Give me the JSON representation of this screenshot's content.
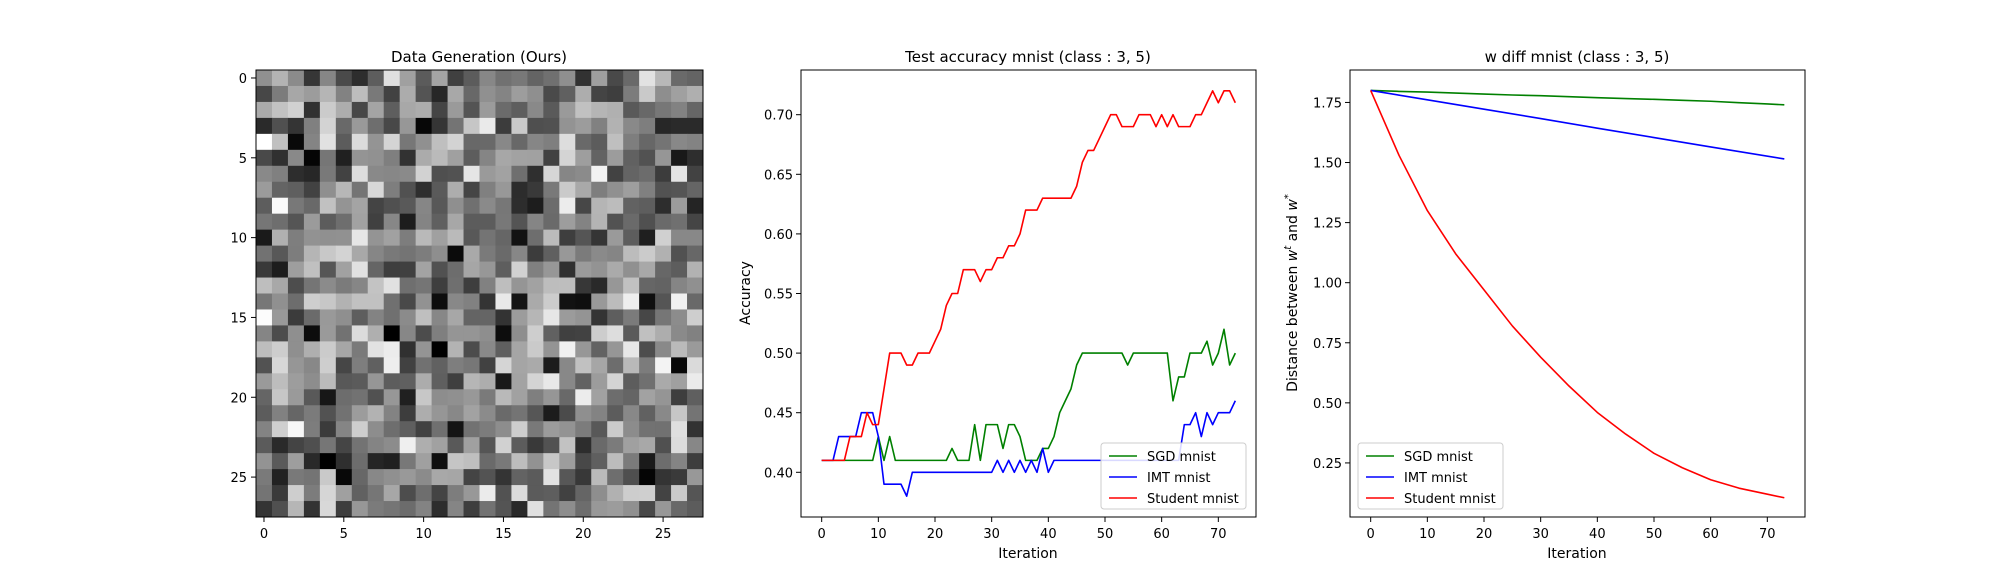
{
  "colors": {
    "green": "#008000",
    "blue": "#0000ff",
    "red": "#ff0000",
    "background": "#ffffff"
  },
  "chart_data": [
    {
      "type": "heatmap",
      "title": "Data Generation (Ours)",
      "xlabel": "",
      "ylabel": "",
      "rows": 28,
      "cols": 28,
      "colormap": "gray",
      "xticks": [
        0,
        5,
        10,
        15,
        20,
        25
      ],
      "yticks": [
        0,
        5,
        10,
        15,
        20,
        25
      ],
      "pixel_values_note_free": true,
      "seed": 1337,
      "notable_pixels": [
        {
          "row": 5,
          "col": 3,
          "value": 0.02
        },
        {
          "row": 16,
          "col": 3,
          "value": 0.05
        },
        {
          "row": 22,
          "col": 2,
          "value": 0.97
        },
        {
          "row": 6,
          "col": 21,
          "value": 0.95
        },
        {
          "row": 19,
          "col": 27,
          "value": 0.92
        },
        {
          "row": 22,
          "col": 12,
          "value": 0.08
        },
        {
          "row": 10,
          "col": 16,
          "value": 0.07
        },
        {
          "row": 14,
          "col": 20,
          "value": 0.06
        },
        {
          "row": 10,
          "col": 0,
          "value": 0.1
        }
      ]
    },
    {
      "type": "line",
      "title": "Test accuracy mnist (class : 3, 5)",
      "xlabel": "Iteration",
      "ylabel": "Accuracy",
      "xlim": [
        -3.65,
        76.65
      ],
      "ylim": [
        0.3625,
        0.7375
      ],
      "xticks": [
        0,
        10,
        20,
        30,
        40,
        50,
        60,
        70
      ],
      "yticks": [
        0.4,
        0.45,
        0.5,
        0.55,
        0.6,
        0.65,
        0.7
      ],
      "yticks_labels": [
        "0.40",
        "0.45",
        "0.50",
        "0.55",
        "0.60",
        "0.65",
        "0.70"
      ],
      "legend_position": "lower-right",
      "series": [
        {
          "name": "SGD mnist",
          "color": "#008000",
          "x": [
            0,
            1,
            2,
            3,
            4,
            5,
            6,
            7,
            8,
            9,
            10,
            11,
            12,
            13,
            14,
            15,
            16,
            17,
            18,
            19,
            20,
            21,
            22,
            23,
            24,
            25,
            26,
            27,
            28,
            29,
            30,
            31,
            32,
            33,
            34,
            35,
            36,
            37,
            38,
            39,
            40,
            41,
            42,
            43,
            44,
            45,
            46,
            47,
            48,
            49,
            50,
            51,
            52,
            53,
            54,
            55,
            56,
            57,
            58,
            59,
            60,
            61,
            62,
            63,
            64,
            65,
            66,
            67,
            68,
            69,
            70,
            71,
            72,
            73
          ],
          "values": [
            0.41,
            0.41,
            0.41,
            0.41,
            0.41,
            0.41,
            0.41,
            0.41,
            0.41,
            0.41,
            0.43,
            0.41,
            0.43,
            0.41,
            0.41,
            0.41,
            0.41,
            0.41,
            0.41,
            0.41,
            0.41,
            0.41,
            0.41,
            0.42,
            0.41,
            0.41,
            0.41,
            0.44,
            0.41,
            0.44,
            0.44,
            0.44,
            0.42,
            0.44,
            0.44,
            0.43,
            0.41,
            0.41,
            0.41,
            0.42,
            0.42,
            0.43,
            0.45,
            0.46,
            0.47,
            0.49,
            0.5,
            0.5,
            0.5,
            0.5,
            0.5,
            0.5,
            0.5,
            0.5,
            0.49,
            0.5,
            0.5,
            0.5,
            0.5,
            0.5,
            0.5,
            0.5,
            0.46,
            0.48,
            0.48,
            0.5,
            0.5,
            0.5,
            0.51,
            0.49,
            0.5,
            0.52,
            0.49,
            0.5
          ]
        },
        {
          "name": "IMT mnist",
          "color": "#0000ff",
          "x": [
            0,
            1,
            2,
            3,
            4,
            5,
            6,
            7,
            8,
            9,
            10,
            11,
            12,
            13,
            14,
            15,
            16,
            17,
            18,
            19,
            20,
            21,
            22,
            23,
            24,
            25,
            26,
            27,
            28,
            29,
            30,
            31,
            32,
            33,
            34,
            35,
            36,
            37,
            38,
            39,
            40,
            41,
            42,
            43,
            44,
            45,
            46,
            47,
            48,
            49,
            50,
            51,
            52,
            53,
            54,
            55,
            56,
            57,
            58,
            59,
            60,
            61,
            62,
            63,
            64,
            65,
            66,
            67,
            68,
            69,
            70,
            71,
            72,
            73
          ],
          "values": [
            0.41,
            0.41,
            0.41,
            0.43,
            0.43,
            0.43,
            0.43,
            0.45,
            0.45,
            0.45,
            0.43,
            0.39,
            0.39,
            0.39,
            0.39,
            0.38,
            0.4,
            0.4,
            0.4,
            0.4,
            0.4,
            0.4,
            0.4,
            0.4,
            0.4,
            0.4,
            0.4,
            0.4,
            0.4,
            0.4,
            0.4,
            0.41,
            0.4,
            0.41,
            0.4,
            0.41,
            0.4,
            0.41,
            0.4,
            0.42,
            0.4,
            0.41,
            0.41,
            0.41,
            0.41,
            0.41,
            0.41,
            0.41,
            0.41,
            0.41,
            0.41,
            0.41,
            0.41,
            0.41,
            0.41,
            0.41,
            0.41,
            0.41,
            0.41,
            0.41,
            0.41,
            0.41,
            0.41,
            0.41,
            0.44,
            0.44,
            0.45,
            0.43,
            0.45,
            0.44,
            0.45,
            0.45,
            0.45,
            0.46
          ]
        },
        {
          "name": "Student mnist",
          "color": "#ff0000",
          "x": [
            0,
            1,
            2,
            3,
            4,
            5,
            6,
            7,
            8,
            9,
            10,
            11,
            12,
            13,
            14,
            15,
            16,
            17,
            18,
            19,
            20,
            21,
            22,
            23,
            24,
            25,
            26,
            27,
            28,
            29,
            30,
            31,
            32,
            33,
            34,
            35,
            36,
            37,
            38,
            39,
            40,
            41,
            42,
            43,
            44,
            45,
            46,
            47,
            48,
            49,
            50,
            51,
            52,
            53,
            54,
            55,
            56,
            57,
            58,
            59,
            60,
            61,
            62,
            63,
            64,
            65,
            66,
            67,
            68,
            69,
            70,
            71,
            72,
            73
          ],
          "values": [
            0.41,
            0.41,
            0.41,
            0.41,
            0.41,
            0.43,
            0.43,
            0.43,
            0.45,
            0.44,
            0.44,
            0.47,
            0.5,
            0.5,
            0.5,
            0.49,
            0.49,
            0.5,
            0.5,
            0.5,
            0.51,
            0.52,
            0.54,
            0.55,
            0.55,
            0.57,
            0.57,
            0.57,
            0.56,
            0.57,
            0.57,
            0.58,
            0.58,
            0.59,
            0.59,
            0.6,
            0.62,
            0.62,
            0.62,
            0.63,
            0.63,
            0.63,
            0.63,
            0.63,
            0.63,
            0.64,
            0.66,
            0.67,
            0.67,
            0.68,
            0.69,
            0.7,
            0.7,
            0.69,
            0.69,
            0.69,
            0.7,
            0.7,
            0.7,
            0.69,
            0.7,
            0.69,
            0.7,
            0.69,
            0.69,
            0.69,
            0.7,
            0.7,
            0.71,
            0.72,
            0.71,
            0.72,
            0.72,
            0.71
          ]
        }
      ]
    },
    {
      "type": "line",
      "title": "w diff mnist (class : 3, 5)",
      "xlabel": "Iteration",
      "ylabel": "Distance between w^t and w^*",
      "ylabel_parts": [
        "Distance between ",
        "w",
        "t",
        " and ",
        "w",
        "*"
      ],
      "xlim": [
        -3.65,
        76.65
      ],
      "ylim": [
        0.025,
        1.885
      ],
      "xticks": [
        0,
        10,
        20,
        30,
        40,
        50,
        60,
        70
      ],
      "yticks": [
        0.25,
        0.5,
        0.75,
        1.0,
        1.25,
        1.5,
        1.75
      ],
      "yticks_labels": [
        "0.25",
        "0.50",
        "0.75",
        "1.00",
        "1.25",
        "1.50",
        "1.75"
      ],
      "legend_position": "lower-left",
      "series": [
        {
          "name": "SGD mnist",
          "color": "#008000",
          "x": [
            0,
            5,
            10,
            15,
            20,
            25,
            30,
            35,
            40,
            45,
            50,
            55,
            60,
            65,
            70,
            73
          ],
          "values": [
            1.8,
            1.796,
            1.793,
            1.789,
            1.785,
            1.781,
            1.778,
            1.774,
            1.77,
            1.766,
            1.763,
            1.759,
            1.755,
            1.749,
            1.744,
            1.74
          ]
        },
        {
          "name": "IMT mnist",
          "color": "#0000ff",
          "x": [
            0,
            10,
            20,
            30,
            40,
            50,
            60,
            73
          ],
          "values": [
            1.8,
            1.761,
            1.722,
            1.683,
            1.643,
            1.604,
            1.565,
            1.515
          ]
        },
        {
          "name": "Student mnist",
          "color": "#ff0000",
          "x": [
            0,
            5,
            10,
            15,
            20,
            25,
            30,
            35,
            40,
            45,
            50,
            55,
            60,
            65,
            70,
            73
          ],
          "values": [
            1.8,
            1.53,
            1.3,
            1.12,
            0.97,
            0.82,
            0.69,
            0.57,
            0.46,
            0.37,
            0.29,
            0.23,
            0.18,
            0.145,
            0.12,
            0.105
          ]
        }
      ]
    }
  ]
}
